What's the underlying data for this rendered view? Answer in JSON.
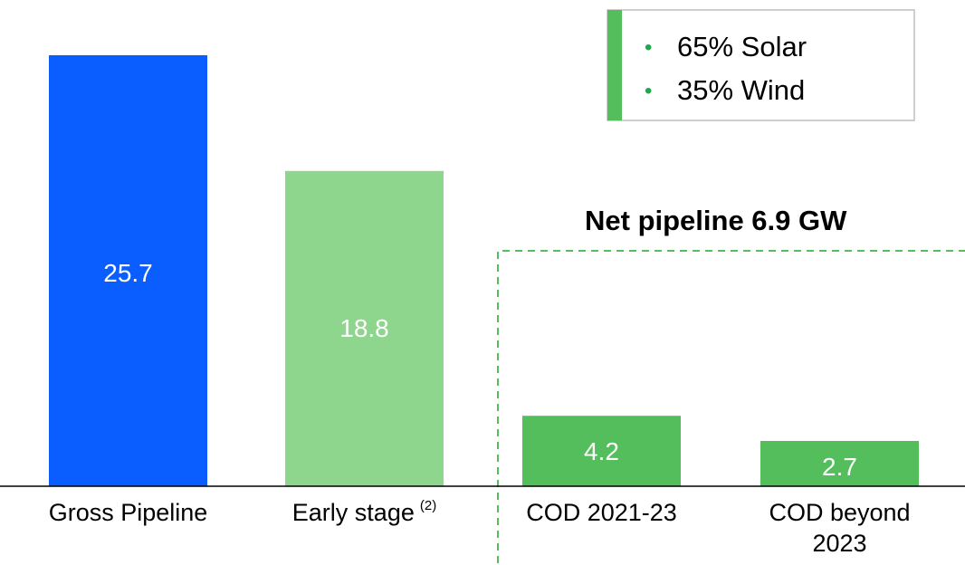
{
  "chart_data": {
    "type": "bar",
    "categories": [
      "Gross Pipeline",
      "Early stage",
      "COD 2021-23",
      "COD beyond 2023"
    ],
    "category_superscripts": [
      "",
      "(2)",
      "",
      ""
    ],
    "values": [
      25.7,
      18.8,
      4.2,
      2.7
    ],
    "value_labels": [
      "25.7",
      "18.8",
      "4.2",
      "2.7"
    ],
    "bar_colors": [
      "#0A5EFF",
      "#8ED58E",
      "#55BE5C",
      "#55BE5C"
    ],
    "ylim": [
      0,
      25.7
    ],
    "grid": false,
    "annotations": {
      "net_pipeline": "Net pipeline 6.9 GW",
      "mix_box": [
        "65% Solar",
        "35% Wind"
      ]
    },
    "title": "",
    "xlabel": "",
    "ylabel": ""
  },
  "colors": {
    "accent_green": "#55BE5C",
    "bullet_green": "#1FA74C",
    "box_border": "#BFBFBF",
    "dashed_border": "#55BE5C"
  }
}
